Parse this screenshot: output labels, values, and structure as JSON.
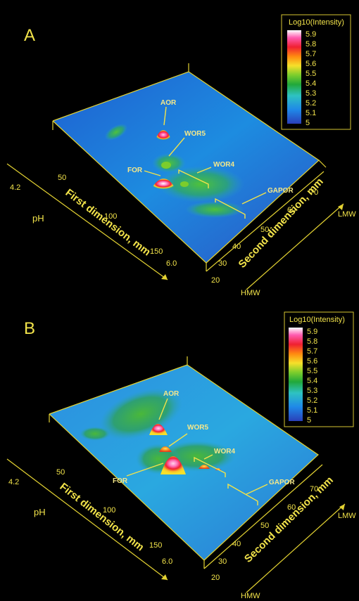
{
  "chart_data": [
    {
      "panel": "A",
      "type": "heatmap",
      "subtype": "3D surface",
      "colorbar": {
        "title": "Log10(Intensity)",
        "ticks": [
          "5.9",
          "5.8",
          "5.7",
          "5.6",
          "5.5",
          "5.4",
          "5.3",
          "5.2",
          "5.1",
          "5"
        ],
        "range": [
          5,
          5.9
        ],
        "colors": [
          "#2a3fb8",
          "#1f88e8",
          "#2ec2c2",
          "#21a83a",
          "#7ccd2c",
          "#f6e02a",
          "#ff8a10",
          "#f02030",
          "#ff5bb0",
          "#ffffff"
        ]
      },
      "axes": {
        "first_dimension": {
          "label": "First dimension, mm",
          "ticks": [
            "50",
            "100",
            "150"
          ]
        },
        "second_dimension": {
          "label": "Second dimension, mm",
          "ticks": [
            "20",
            "30",
            "40",
            "50",
            "60",
            "70"
          ]
        },
        "pH": {
          "label": "pH",
          "ticks": [
            "4.2",
            "6.0"
          ]
        },
        "mw": {
          "ticks": [
            "HMW",
            "LMW"
          ]
        }
      },
      "peaks": [
        {
          "name": "AOR",
          "first_dim_mm": 52,
          "second_dim_mm": 58,
          "log10_intensity": 5.7
        },
        {
          "name": "WOR5",
          "first_dim_mm": 80,
          "second_dim_mm": 55,
          "log10_intensity": 5.3
        },
        {
          "name": "FOR",
          "first_dim_mm": 90,
          "second_dim_mm": 50,
          "log10_intensity": 5.8
        },
        {
          "name": "WOR4",
          "first_dim_mm": 105,
          "second_dim_mm": 60,
          "log10_intensity": 5.3
        },
        {
          "name": "GAPOR",
          "first_dim_mm": 130,
          "second_dim_mm": 62,
          "log10_intensity": 5.2
        }
      ]
    },
    {
      "panel": "B",
      "type": "heatmap",
      "subtype": "3D surface",
      "colorbar": {
        "title": "Log10(Intensity)",
        "ticks": [
          "5.9",
          "5.8",
          "5.7",
          "5.6",
          "5.5",
          "5.4",
          "5.3",
          "5.2",
          "5.1",
          "5"
        ],
        "range": [
          5,
          5.9
        ],
        "colors": [
          "#2a3fb8",
          "#1f88e8",
          "#2ec2c2",
          "#21a83a",
          "#7ccd2c",
          "#f6e02a",
          "#ff8a10",
          "#f02030",
          "#ff5bb0",
          "#ffffff"
        ]
      },
      "axes": {
        "first_dimension": {
          "label": "First dimension, mm",
          "ticks": [
            "50",
            "100",
            "150"
          ]
        },
        "second_dimension": {
          "label": "Second dimension, mm",
          "ticks": [
            "20",
            "30",
            "40",
            "50",
            "60",
            "70"
          ]
        },
        "pH": {
          "label": "pH",
          "ticks": [
            "4.2",
            "6.0"
          ]
        },
        "mw": {
          "ticks": [
            "HMW",
            "LMW"
          ]
        }
      },
      "peaks": [
        {
          "name": "AOR",
          "first_dim_mm": 52,
          "second_dim_mm": 58,
          "log10_intensity": 5.6
        },
        {
          "name": "WOR5",
          "first_dim_mm": 80,
          "second_dim_mm": 55,
          "log10_intensity": 5.5
        },
        {
          "name": "FOR",
          "first_dim_mm": 90,
          "second_dim_mm": 50,
          "log10_intensity": 5.7
        },
        {
          "name": "WOR4",
          "first_dim_mm": 105,
          "second_dim_mm": 60,
          "log10_intensity": 5.5
        },
        {
          "name": "GAPOR",
          "first_dim_mm": 130,
          "second_dim_mm": 62,
          "log10_intensity": 5.2
        }
      ]
    }
  ]
}
